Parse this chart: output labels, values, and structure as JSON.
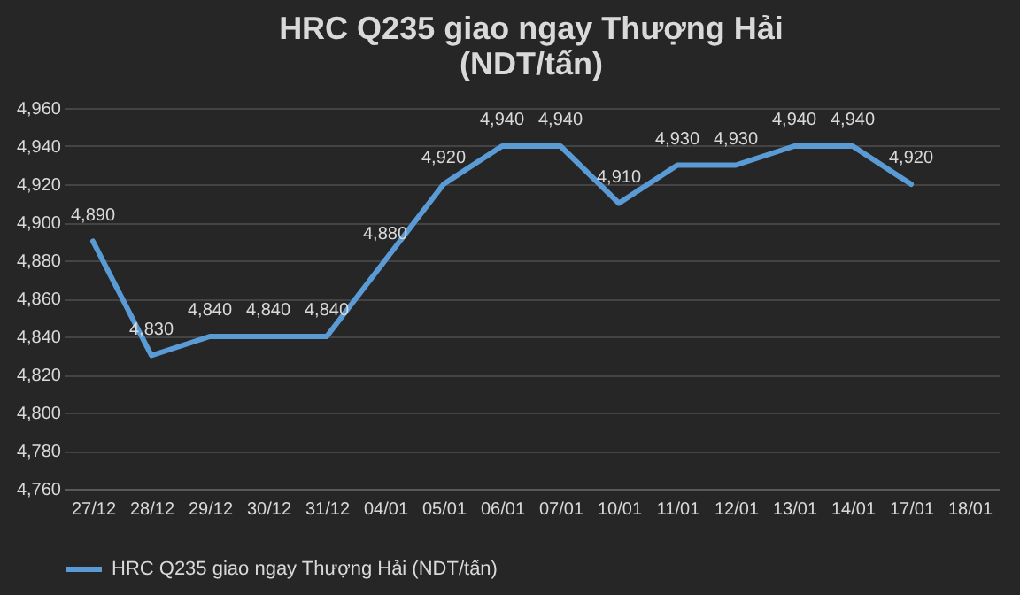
{
  "chart_data": {
    "type": "line",
    "title": "HRC Q235 giao ngay Thượng Hải (NDT/tấn)",
    "categories": [
      "27/12",
      "28/12",
      "29/12",
      "30/12",
      "31/12",
      "04/01",
      "05/01",
      "06/01",
      "07/01",
      "10/01",
      "11/01",
      "12/01",
      "13/01",
      "14/01",
      "17/01",
      "18/01"
    ],
    "series": [
      {
        "name": "HRC Q235 giao ngay Thượng Hải (NDT/tấn)",
        "color": "#5b9bd5",
        "values": [
          4890,
          4830,
          4840,
          4840,
          4840,
          4880,
          4920,
          4940,
          4940,
          4910,
          4930,
          4930,
          4940,
          4940,
          4920,
          null
        ],
        "value_labels": [
          "4,890",
          "4,830",
          "4,840",
          "4,840",
          "4,840",
          "4,880",
          "4,920",
          "4,940",
          "4,940",
          "4,910",
          "4,930",
          "4,930",
          "4,940",
          "4,940",
          "4,920",
          null
        ]
      }
    ],
    "ylim": [
      4760,
      4960
    ],
    "yticks": [
      {
        "value": 4760,
        "label": "4,760"
      },
      {
        "value": 4780,
        "label": "4,780"
      },
      {
        "value": 4800,
        "label": "4,800"
      },
      {
        "value": 4820,
        "label": "4,820"
      },
      {
        "value": 4840,
        "label": "4,840"
      },
      {
        "value": 4860,
        "label": "4,860"
      },
      {
        "value": 4880,
        "label": "4,880"
      },
      {
        "value": 4900,
        "label": "4,900"
      },
      {
        "value": 4920,
        "label": "4,920"
      },
      {
        "value": 4940,
        "label": "4,940"
      },
      {
        "value": 4960,
        "label": "4,960"
      }
    ],
    "grid": "y",
    "legend": "bottom",
    "marker": "none",
    "line_style": "solid"
  }
}
